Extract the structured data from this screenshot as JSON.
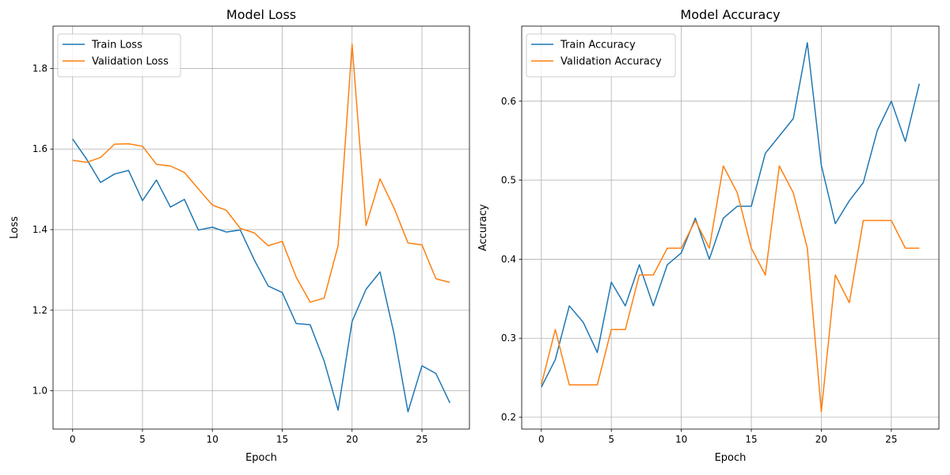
{
  "chart_data": [
    {
      "type": "line",
      "title": "Model Loss",
      "xlabel": "Epoch",
      "ylabel": "Loss",
      "xlim": [
        -1.4,
        28.4
      ],
      "ylim": [
        0.905,
        1.905
      ],
      "xticks": [
        0,
        5,
        10,
        15,
        20,
        25
      ],
      "yticks": [
        1.0,
        1.2,
        1.4,
        1.6,
        1.8
      ],
      "ytick_labels": [
        "1.0",
        "1.2",
        "1.4",
        "1.6",
        "1.8"
      ],
      "grid": true,
      "legend_position": "top-left",
      "x": [
        0,
        1,
        2,
        3,
        4,
        5,
        6,
        7,
        8,
        9,
        10,
        11,
        12,
        13,
        14,
        15,
        16,
        17,
        18,
        19,
        20,
        21,
        22,
        23,
        24,
        25,
        26,
        27
      ],
      "series": [
        {
          "name": "Train Loss",
          "color": "#1f77b4",
          "values": [
            1.625,
            1.575,
            1.517,
            1.538,
            1.547,
            1.472,
            1.523,
            1.456,
            1.475,
            1.399,
            1.406,
            1.394,
            1.399,
            1.325,
            1.26,
            1.244,
            1.167,
            1.164,
            1.074,
            0.952,
            1.172,
            1.252,
            1.295,
            1.142,
            0.948,
            1.062,
            1.043,
            0.97
          ]
        },
        {
          "name": "Validation Loss",
          "color": "#ff7f0e",
          "values": [
            1.572,
            1.567,
            1.579,
            1.612,
            1.613,
            1.607,
            1.562,
            1.558,
            1.542,
            1.501,
            1.461,
            1.448,
            1.403,
            1.392,
            1.36,
            1.371,
            1.282,
            1.22,
            1.23,
            1.36,
            1.86,
            1.41,
            1.526,
            1.454,
            1.367,
            1.362,
            1.278,
            1.269
          ]
        }
      ]
    },
    {
      "type": "line",
      "title": "Model Accuracy",
      "xlabel": "Epoch",
      "ylabel": "Accuracy",
      "xlim": [
        -1.4,
        28.4
      ],
      "ylim": [
        0.185,
        0.695
      ],
      "xticks": [
        0,
        5,
        10,
        15,
        20,
        25
      ],
      "yticks": [
        0.2,
        0.3,
        0.4,
        0.5,
        0.6
      ],
      "ytick_labels": [
        "0.2",
        "0.3",
        "0.4",
        "0.5",
        "0.6"
      ],
      "grid": true,
      "legend_position": "top-left",
      "x": [
        0,
        1,
        2,
        3,
        4,
        5,
        6,
        7,
        8,
        9,
        10,
        11,
        12,
        13,
        14,
        15,
        16,
        17,
        18,
        19,
        20,
        21,
        22,
        23,
        24,
        25,
        26,
        27
      ],
      "series": [
        {
          "name": "Train Accuracy",
          "color": "#1f77b4",
          "values": [
            0.238,
            0.273,
            0.341,
            0.32,
            0.282,
            0.371,
            0.341,
            0.393,
            0.341,
            0.393,
            0.408,
            0.452,
            0.4,
            0.452,
            0.467,
            0.467,
            0.534,
            0.556,
            0.578,
            0.674,
            0.519,
            0.445,
            0.474,
            0.497,
            0.563,
            0.6,
            0.549,
            0.622
          ]
        },
        {
          "name": "Validation Accuracy",
          "color": "#ff7f0e",
          "values": [
            0.241,
            0.311,
            0.241,
            0.241,
            0.241,
            0.311,
            0.311,
            0.38,
            0.38,
            0.414,
            0.414,
            0.449,
            0.414,
            0.518,
            0.484,
            0.414,
            0.38,
            0.518,
            0.484,
            0.414,
            0.207,
            0.38,
            0.345,
            0.449,
            0.449,
            0.449,
            0.414,
            0.414
          ]
        }
      ]
    }
  ]
}
